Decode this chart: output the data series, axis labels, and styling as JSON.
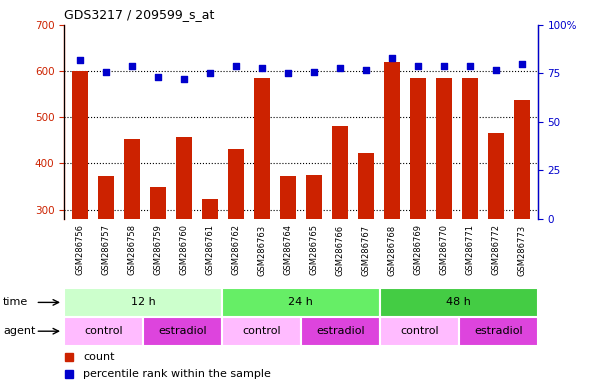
{
  "title": "GDS3217 / 209599_s_at",
  "samples": [
    "GSM286756",
    "GSM286757",
    "GSM286758",
    "GSM286759",
    "GSM286760",
    "GSM286761",
    "GSM286762",
    "GSM286763",
    "GSM286764",
    "GSM286765",
    "GSM286766",
    "GSM286767",
    "GSM286768",
    "GSM286769",
    "GSM286770",
    "GSM286771",
    "GSM286772",
    "GSM286773"
  ],
  "counts": [
    600,
    372,
    452,
    348,
    458,
    323,
    432,
    585,
    372,
    374,
    482,
    423,
    620,
    586,
    585,
    585,
    466,
    538
  ],
  "percentiles": [
    82,
    76,
    79,
    73,
    72,
    75,
    79,
    78,
    75,
    76,
    78,
    77,
    83,
    79,
    79,
    79,
    77,
    80
  ],
  "ylim_left": [
    280,
    700
  ],
  "ylim_right": [
    0,
    100
  ],
  "yticks_left": [
    300,
    400,
    500,
    600,
    700
  ],
  "yticks_right": [
    0,
    25,
    50,
    75,
    100
  ],
  "bar_color": "#cc2200",
  "dot_color": "#0000cc",
  "time_groups": [
    {
      "label": "12 h",
      "start": 0,
      "end": 6,
      "color": "#ccffcc"
    },
    {
      "label": "24 h",
      "start": 6,
      "end": 12,
      "color": "#66ee66"
    },
    {
      "label": "48 h",
      "start": 12,
      "end": 18,
      "color": "#44cc44"
    }
  ],
  "agent_groups": [
    {
      "label": "control",
      "start": 0,
      "end": 3,
      "color": "#ffbbff"
    },
    {
      "label": "estradiol",
      "start": 3,
      "end": 6,
      "color": "#dd44dd"
    },
    {
      "label": "control",
      "start": 6,
      "end": 9,
      "color": "#ffbbff"
    },
    {
      "label": "estradiol",
      "start": 9,
      "end": 12,
      "color": "#dd44dd"
    },
    {
      "label": "control",
      "start": 12,
      "end": 15,
      "color": "#ffbbff"
    },
    {
      "label": "estradiol",
      "start": 15,
      "end": 18,
      "color": "#dd44dd"
    }
  ],
  "left_axis_color": "#cc2200",
  "right_axis_color": "#0000cc",
  "figure_width": 6.11,
  "figure_height": 3.84
}
